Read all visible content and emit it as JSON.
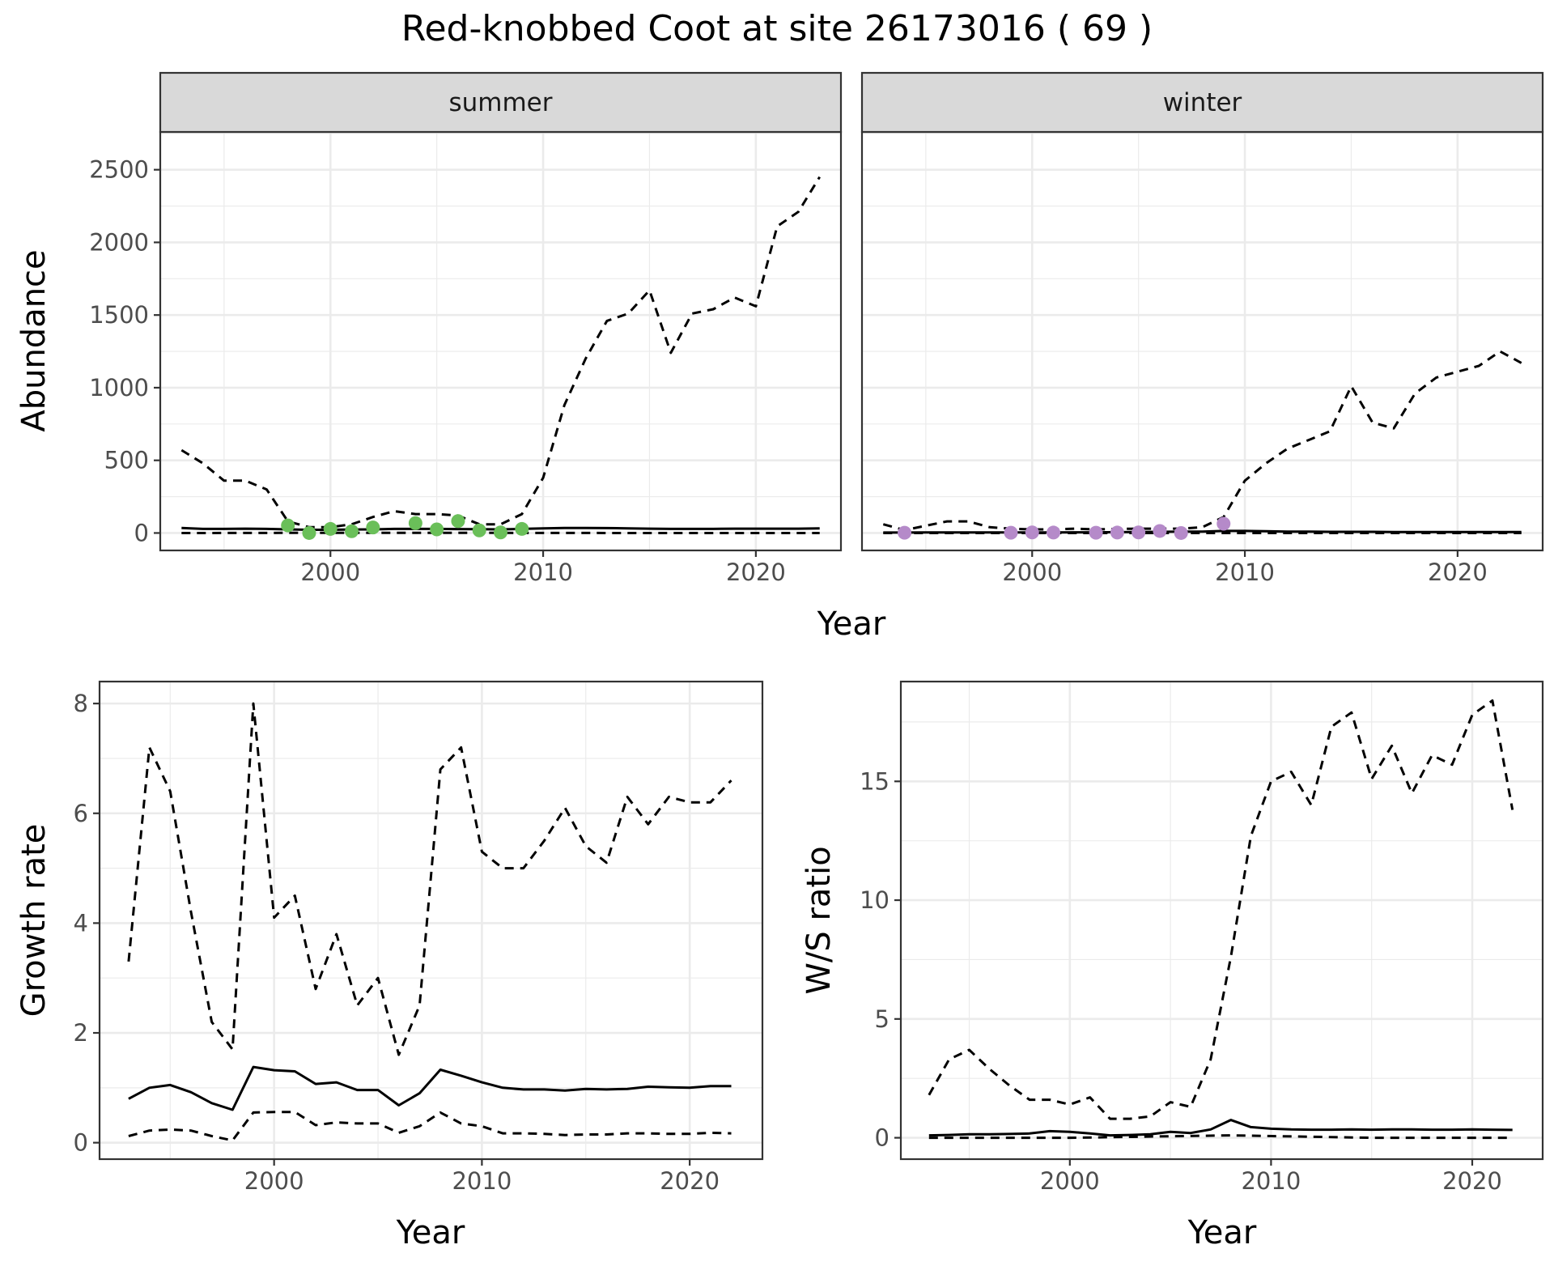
{
  "title": "Red-knobbed Coot at site 26173016 ( 69 )",
  "colors": {
    "summer_points": "#6abf59",
    "winter_points": "#b58ac9",
    "lines": "#000000",
    "strip_bg": "#d9d9d9",
    "grid": "#ebebeb"
  },
  "chart_data": [
    {
      "id": "abundance",
      "type": "line",
      "ylabel": "Abundance",
      "xlabel": "Year",
      "xlim": [
        1992,
        2024
      ],
      "ylim": [
        -120,
        2760
      ],
      "x_ticks": [
        2000,
        2010,
        2020
      ],
      "y_ticks": [
        0,
        500,
        1000,
        1500,
        2000,
        2500
      ],
      "grid": true,
      "panels": [
        {
          "strip": "summer",
          "point_color": "#6abf59",
          "points": {
            "x": [
              1998,
              1999,
              2000,
              2001,
              2002,
              2004,
              2005,
              2006,
              2007,
              2008,
              2009
            ],
            "y": [
              52,
              0,
              28,
              12,
              38,
              68,
              25,
              82,
              18,
              4,
              28
            ]
          },
          "series": [
            {
              "style": "dashed",
              "x": [
                1993,
                1994,
                1995,
                1996,
                1997,
                1998,
                1999,
                2000,
                2001,
                2002,
                2003,
                2004,
                2005,
                2006,
                2007,
                2008,
                2009,
                2010,
                2011,
                2012,
                2013,
                2014,
                2015,
                2016,
                2017,
                2018,
                2019,
                2020,
                2021,
                2022,
                2023
              ],
              "y": [
                570,
                480,
                360,
                360,
                300,
                80,
                40,
                40,
                60,
                110,
                150,
                130,
                130,
                120,
                60,
                60,
                130,
                380,
                880,
                1200,
                1460,
                1510,
                1670,
                1240,
                1510,
                1540,
                1620,
                1560,
                2110,
                2210,
                2450
              ]
            },
            {
              "style": "solid",
              "x": [
                1993,
                1994,
                1995,
                1996,
                1997,
                1998,
                1999,
                2000,
                2001,
                2002,
                2003,
                2004,
                2005,
                2006,
                2007,
                2008,
                2009,
                2010,
                2011,
                2012,
                2013,
                2014,
                2015,
                2016,
                2017,
                2018,
                2019,
                2020,
                2021,
                2022,
                2023
              ],
              "y": [
                35,
                28,
                28,
                30,
                28,
                25,
                22,
                22,
                24,
                25,
                28,
                28,
                28,
                27,
                26,
                25,
                28,
                32,
                35,
                35,
                34,
                32,
                30,
                28,
                28,
                28,
                30,
                30,
                30,
                30,
                32
              ]
            },
            {
              "style": "dashed",
              "x": [
                1993,
                1998,
                2008,
                2015,
                2023
              ],
              "y": [
                0,
                1,
                1,
                0,
                0
              ]
            }
          ]
        },
        {
          "strip": "winter",
          "point_color": "#b58ac9",
          "points": {
            "x": [
              1994,
              1999,
              2000,
              2001,
              2003,
              2004,
              2005,
              2006,
              2007,
              2009
            ],
            "y": [
              2,
              2,
              4,
              3,
              2,
              3,
              4,
              14,
              0,
              64
            ]
          },
          "series": [
            {
              "style": "dashed",
              "x": [
                1993,
                1994,
                1995,
                1996,
                1997,
                1998,
                1999,
                2000,
                2001,
                2002,
                2003,
                2004,
                2005,
                2006,
                2007,
                2008,
                2009,
                2010,
                2011,
                2012,
                2013,
                2014,
                2015,
                2016,
                2017,
                2018,
                2019,
                2020,
                2021,
                2022,
                2023
              ],
              "y": [
                60,
                20,
                50,
                80,
                80,
                40,
                30,
                25,
                25,
                30,
                25,
                28,
                30,
                30,
                30,
                40,
                110,
                360,
                480,
                580,
                640,
                700,
                1010,
                760,
                720,
                960,
                1070,
                1110,
                1150,
                1250,
                1170
              ]
            },
            {
              "style": "solid",
              "x": [
                1993,
                1994,
                1995,
                1996,
                1997,
                1998,
                1999,
                2000,
                2001,
                2002,
                2003,
                2004,
                2005,
                2006,
                2007,
                2008,
                2009,
                2010,
                2011,
                2012,
                2013,
                2014,
                2015,
                2016,
                2017,
                2018,
                2019,
                2020,
                2021,
                2022,
                2023
              ],
              "y": [
                3,
                3,
                4,
                4,
                4,
                4,
                4,
                4,
                4,
                5,
                5,
                6,
                7,
                8,
                9,
                10,
                14,
                14,
                12,
                10,
                9,
                8,
                8,
                8,
                7,
                7,
                7,
                7,
                7,
                7,
                7
              ]
            },
            {
              "style": "dashed",
              "x": [
                1993,
                2008,
                2023
              ],
              "y": [
                0,
                0,
                0
              ]
            }
          ]
        }
      ]
    },
    {
      "id": "growth",
      "type": "line",
      "ylabel": "Growth rate",
      "xlabel": "Year",
      "xlim": [
        1991.6,
        2023.5
      ],
      "ylim": [
        -0.3,
        8.4
      ],
      "x_ticks": [
        2000,
        2010,
        2020
      ],
      "y_ticks": [
        0,
        2,
        4,
        6,
        8
      ],
      "grid": true,
      "series": [
        {
          "style": "dashed",
          "x": [
            1993,
            1994,
            1995,
            1996,
            1997,
            1998,
            1999,
            2000,
            2001,
            2002,
            2003,
            2004,
            2005,
            2006,
            2007,
            2008,
            2009,
            2010,
            2011,
            2012,
            2013,
            2014,
            2015,
            2016,
            2017,
            2018,
            2019,
            2020,
            2021,
            2022
          ],
          "y": [
            3.3,
            7.2,
            6.4,
            4.2,
            2.2,
            1.7,
            8.0,
            4.1,
            4.5,
            2.8,
            3.8,
            2.5,
            3.0,
            1.6,
            2.5,
            6.8,
            7.2,
            5.3,
            5.0,
            5.0,
            5.5,
            6.1,
            5.4,
            5.1,
            6.3,
            5.8,
            6.3,
            6.2,
            6.2,
            6.6
          ]
        },
        {
          "style": "solid",
          "x": [
            1993,
            1994,
            1995,
            1996,
            1997,
            1998,
            1999,
            2000,
            2001,
            2002,
            2003,
            2004,
            2005,
            2006,
            2007,
            2008,
            2009,
            2010,
            2011,
            2012,
            2013,
            2014,
            2015,
            2016,
            2017,
            2018,
            2019,
            2020,
            2021,
            2022
          ],
          "y": [
            0.8,
            1.0,
            1.05,
            0.92,
            0.72,
            0.6,
            1.38,
            1.32,
            1.3,
            1.07,
            1.1,
            0.96,
            0.96,
            0.68,
            0.9,
            1.33,
            1.22,
            1.1,
            1.0,
            0.97,
            0.97,
            0.95,
            0.98,
            0.97,
            0.98,
            1.02,
            1.01,
            1.0,
            1.03,
            1.03
          ]
        },
        {
          "style": "dashed",
          "x": [
            1993,
            1994,
            1995,
            1996,
            1997,
            1998,
            1999,
            2000,
            2001,
            2002,
            2003,
            2004,
            2005,
            2006,
            2007,
            2008,
            2009,
            2010,
            2011,
            2012,
            2013,
            2014,
            2015,
            2016,
            2017,
            2018,
            2019,
            2020,
            2021,
            2022
          ],
          "y": [
            0.12,
            0.22,
            0.24,
            0.22,
            0.12,
            0.04,
            0.55,
            0.56,
            0.56,
            0.32,
            0.37,
            0.35,
            0.35,
            0.18,
            0.3,
            0.55,
            0.35,
            0.3,
            0.17,
            0.17,
            0.16,
            0.14,
            0.15,
            0.15,
            0.17,
            0.17,
            0.16,
            0.16,
            0.18,
            0.17
          ]
        }
      ]
    },
    {
      "id": "ratio",
      "type": "line",
      "ylabel": "W/S ratio",
      "xlabel": "Year",
      "xlim": [
        1991.6,
        2023.5
      ],
      "ylim": [
        -0.9,
        19.2
      ],
      "x_ticks": [
        2000,
        2010,
        2020
      ],
      "y_ticks": [
        0,
        5,
        10,
        15
      ],
      "grid": true,
      "series": [
        {
          "style": "dashed",
          "x": [
            1993,
            1994,
            1995,
            1996,
            1997,
            1998,
            1999,
            2000,
            2001,
            2002,
            2003,
            2004,
            2005,
            2006,
            2007,
            2008,
            2009,
            2010,
            2011,
            2012,
            2013,
            2014,
            2015,
            2016,
            2017,
            2018,
            2019,
            2020,
            2021,
            2022
          ],
          "y": [
            1.8,
            3.3,
            3.7,
            2.9,
            2.2,
            1.6,
            1.6,
            1.4,
            1.7,
            0.8,
            0.8,
            0.9,
            1.5,
            1.3,
            3.3,
            7.6,
            12.7,
            15.0,
            15.4,
            14.0,
            17.3,
            17.9,
            15.1,
            16.5,
            14.5,
            16.1,
            15.7,
            17.8,
            18.4,
            13.8
          ]
        },
        {
          "style": "solid",
          "x": [
            1993,
            1994,
            1995,
            1996,
            1997,
            1998,
            1999,
            2000,
            2001,
            2002,
            2003,
            2004,
            2005,
            2006,
            2007,
            2008,
            2009,
            2010,
            2011,
            2012,
            2013,
            2014,
            2015,
            2016,
            2017,
            2018,
            2019,
            2020,
            2021,
            2022
          ],
          "y": [
            0.1,
            0.12,
            0.15,
            0.15,
            0.16,
            0.18,
            0.28,
            0.25,
            0.18,
            0.1,
            0.12,
            0.15,
            0.25,
            0.2,
            0.35,
            0.75,
            0.45,
            0.38,
            0.35,
            0.34,
            0.34,
            0.35,
            0.34,
            0.35,
            0.35,
            0.34,
            0.34,
            0.35,
            0.34,
            0.33
          ]
        },
        {
          "style": "dashed",
          "x": [
            1993,
            2000,
            2008,
            2015,
            2022
          ],
          "y": [
            0,
            0,
            0.1,
            0,
            0
          ]
        }
      ]
    }
  ]
}
